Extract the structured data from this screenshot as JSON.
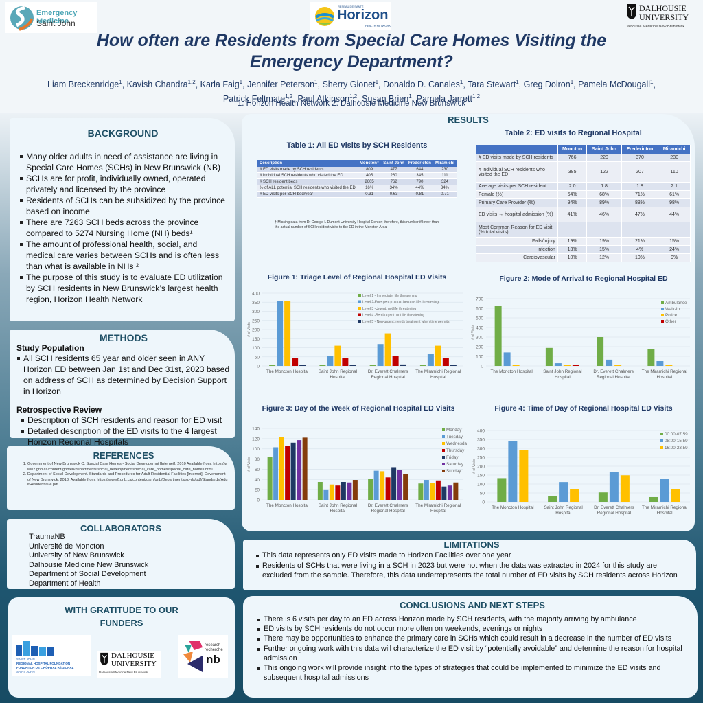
{
  "header": {
    "logo_left": {
      "line1": "Emergency Medicine",
      "line2": "Saint John"
    },
    "logo_center": {
      "small": "RÉSEAU DE SANTÉ",
      "name": "Horizon",
      "sub": "HEALTH NETWORK"
    },
    "logo_right": {
      "line1": "DALHOUSIE",
      "line2": "UNIVERSITY",
      "line3": "Dalhousie Medicine New Brunswick"
    },
    "title_line1": "How often are Residents from Special Care Homes Visiting the",
    "title_line2": "Emergency Department?",
    "authors_line1": [
      {
        "name": "Liam Breckenridge",
        "sup": "1"
      },
      {
        "name": "Kavish Chandra",
        "sup": "1,2"
      },
      {
        "name": "Karla Faig",
        "sup": "1"
      },
      {
        "name": "Jennifer Peterson",
        "sup": "1"
      },
      {
        "name": "Sherry Gionet",
        "sup": "1"
      },
      {
        "name": "Donaldo D. Canales",
        "sup": "1"
      },
      {
        "name": "Tara Stewart",
        "sup": "1"
      },
      {
        "name": "Greg Doiron",
        "sup": "1"
      },
      {
        "name": "Pamela McDougall",
        "sup": "1"
      }
    ],
    "authors_line2": [
      {
        "name": "Patrick Feltmate",
        "sup": "1,2"
      },
      {
        "name": "Paul Atkinson",
        "sup": "1,2"
      },
      {
        "name": "Susan Brien",
        "sup": "1"
      },
      {
        "name": "Pamela Jarrett",
        "sup": "1,2"
      }
    ],
    "affiliations": "1. Horizon Health Network  2. Dalhousie Medicine New Brunswick"
  },
  "background": {
    "heading": "BACKGROUND",
    "items": [
      "Many  older adults in need of assistance are living in Special Care Homes (SCHs) in New Brunswick (NB)",
      "SCHs are for profit, individually owned, operated privately and licensed by the province",
      "Residents of SCHs can be subsidized by the province based on income",
      "There are 7263 SCH beds across the province compared to 5274 Nursing Home (NH) beds¹",
      "The amount of professional health, social, and medical care varies between SCHs and is often less than what is available in NHs ²",
      "The purpose of this study is to evaluate ED utilization by SCH residents in New Brunswick’s largest health region, Horizon Health Network"
    ]
  },
  "methods": {
    "heading": "METHODS",
    "sub1": "Study Population",
    "sub1_items": [
      "All SCH residents 65 year and older seen in ANY Horizon ED between Jan 1st  and Dec 31st, 2023 based on address of SCH as determined by Decision Support in Horizon"
    ],
    "sub2": "Retrospective Review",
    "sub2_items": [
      "Description of SCH residents and reason for ED visit",
      "Detailed description of the ED visits to the 4 largest Horizon Regional Hospitals"
    ]
  },
  "references": {
    "heading": "REFERENCES",
    "items": [
      "Government of New Brunswick C. Special Care Homes - Social Developemnt [Internet]. 2010 Available from: https://www2.gnb.ca/content/gnb/en/departments/social_development/special_care_homes/special_care_homes.html",
      "Department of Social Development. Standards and Procedures for Adult Residential Facilities [Internet]. Government of New Brunswick; 2013. Available from: https://www2.gnb.ca/content/dam/gnb/Departments/sd-ds/pdf/Standards/AdultResidential-e.pdf"
    ]
  },
  "collaborators": {
    "heading": "COLLABORATORS",
    "items": [
      "TraumaNB",
      "Université de Moncton",
      "University of New Brunswick",
      "Dalhousie Medicine New Brunswick",
      "Department of Social Development",
      "Department of Health"
    ]
  },
  "funders": {
    "heading_line1": "WITH GRATITUDE TO OUR",
    "heading_line2": "FUNDERS",
    "logo1": {
      "l1": "SAINT JOHN",
      "l2": "REGIONAL HOSPITAL FOUNDATION",
      "l3": "FONDATION DE L'HÔPITAL RÉGIONAL",
      "l4": "SAINT JOHN"
    },
    "logo2": {
      "l1": "DALHOUSIE",
      "l2": "UNIVERSITY",
      "l3": "Dalhousie Medicine New Brunswick"
    },
    "logo3": {
      "l1": "research",
      "l2": "recherche",
      "l3": "nb"
    }
  },
  "results": {
    "heading": "RESULTS",
    "table1": {
      "title": "Table 1: All ED visits by SCH Residents",
      "headers": [
        "Description",
        "Moncton†",
        "Saint John",
        "Fredericton",
        "Miramichi"
      ],
      "rows": [
        [
          "# ED visits made by SCH residents",
          "809",
          "477",
          "644",
          "230"
        ],
        [
          "# individual SCH residents who visited the ED",
          "405",
          "260",
          "345",
          "111"
        ],
        [
          "# SCH resident beds",
          "2605",
          "762",
          "790",
          "324"
        ],
        [
          "% of ALL potential SCH residents who visited the ED",
          "16%",
          "34%",
          "44%",
          "34%"
        ],
        [
          "# ED visits per SCH bed/year",
          "0.31",
          "0.63",
          "0.81",
          "0.71"
        ]
      ],
      "footnote": "† Missing data from Dr George L Dumont University Hospital Center; therefore, this number if lower than the actual number of SCH resident visits to the ED in the Moncton Area"
    },
    "table2": {
      "title": "Table 2: ED visits to Regional Hospital",
      "headers": [
        "",
        "Moncton",
        "Saint John",
        "Fredericton",
        "Miramichi"
      ],
      "rows": [
        [
          "# ED visits made by SCH residents",
          "766",
          "220",
          "370",
          "230"
        ],
        [
          "# individual SCH residents who visited the ED",
          "385",
          "122",
          "207",
          "110"
        ],
        [
          "Average visits per SCH resident",
          "2.0",
          "1.8",
          "1.8",
          "2.1"
        ],
        [
          "Female (%)",
          "64%",
          "68%",
          "71%",
          "61%"
        ],
        [
          "Primary Care Provider (%)",
          "94%",
          "89%",
          "88%",
          "98%"
        ],
        [
          "ED visits → hospital admission (%)",
          "41%",
          "46%",
          "47%",
          "44%"
        ],
        [
          "Most Common Reason for ED visit (% total visits)",
          "",
          "",
          "",
          ""
        ],
        [
          "Falls/Injury",
          "19%",
          "19%",
          "21%",
          "15%"
        ],
        [
          "Infection",
          "13%",
          "15%",
          "4%",
          "24%"
        ],
        [
          "Cardiovascular",
          "10%",
          "12%",
          "10%",
          "9%"
        ]
      ]
    }
  },
  "limitations": {
    "heading": "LIMITATIONS",
    "items": [
      "This data represents only ED visits made to Horizon Facilities over one year",
      " Residents of SCHs that were living in a SCH in 2023 but were not when the data was extracted in 2024 for this study are excluded from the sample.  Therefore,  this data underrepresents the total number of ED visits by SCH residents across Horizon"
    ]
  },
  "conclusions": {
    "heading": "CONCLUSIONS AND NEXT STEPS",
    "items": [
      "There is 6 visits per day to an ED across Horizon made by SCH residents, with the majority arriving by ambulance",
      "ED visits by SCH residents do not occur more often on weekends, evenings or nights",
      "There may be opportunities to enhance the primary care in SCHs which could result in a decrease in the number of ED visits",
      "Further ongoing work with this data will characterize the ED visit by “potentially avoidable” and determine the reason for hospital admission",
      "This ongoing work will provide insight into the types of strategies that could be implemented to minimize the ED visits and subsequent hospital admissions"
    ]
  },
  "chart_data": [
    {
      "id": "fig1",
      "type": "bar",
      "title": "Figure 1: Triage Level of Regional Hospital ED Visits",
      "xlabel": "",
      "ylabel": "# of Visits",
      "ylim": [
        0,
        400
      ],
      "yticks": [
        0,
        50,
        100,
        150,
        200,
        250,
        300,
        350,
        400
      ],
      "grid": true,
      "legend": "top-right",
      "categories": [
        "The Moncton Hospital",
        "Saint John Regional Hospital",
        "Dr. Everett Chalmers Regional Hospital",
        "The Miramichi Regional Hospital"
      ],
      "series": [
        {
          "name": "Level 1 - Immediate: life threatening",
          "color": "#70ad47",
          "values": [
            2,
            4,
            2,
            2
          ]
        },
        {
          "name": "Level 2-Emergency: could become life threatening",
          "color": "#5b9bd5",
          "values": [
            355,
            55,
            120,
            67
          ]
        },
        {
          "name": "Level 3 -Urgent: not life threatening",
          "color": "#ffc000",
          "values": [
            357,
            111,
            179,
            111
          ]
        },
        {
          "name": "Level 4 -Semi-urgent: not life threatening",
          "color": "#c00000",
          "values": [
            44,
            42,
            56,
            44
          ]
        },
        {
          "name": "Level 5 - Non-urgent: needs treatment when time permits",
          "color": "#1f3864",
          "values": [
            4,
            2,
            8,
            3
          ]
        }
      ]
    },
    {
      "id": "fig2",
      "type": "bar",
      "title": "Figure 2: Mode of Arrival to Regional Hospital ED",
      "xlabel": "",
      "ylabel": "# of Visits",
      "ylim": [
        0,
        700
      ],
      "yticks": [
        0,
        100,
        200,
        300,
        400,
        500,
        600,
        700
      ],
      "grid": true,
      "legend": "top-right",
      "categories": [
        "The Moncton Hospital",
        "Saint John Regional Hospital",
        "Dr. Everett Chalmers Regional Hospital",
        "The Miramichi Regional Hospital"
      ],
      "series": [
        {
          "name": "Ambulance",
          "color": "#70ad47",
          "values": [
            622,
            187,
            300,
            175
          ]
        },
        {
          "name": "Walk-In",
          "color": "#5b9bd5",
          "values": [
            140,
            28,
            65,
            50
          ]
        },
        {
          "name": "Police",
          "color": "#ffc000",
          "values": [
            2,
            1,
            4,
            1
          ]
        },
        {
          "name": "Other",
          "color": "#c00000",
          "values": [
            0,
            1,
            0,
            0
          ]
        }
      ]
    },
    {
      "id": "fig3",
      "type": "bar",
      "title": "Figure 3: Day of the Week of Regional Hospital ED Visits",
      "xlabel": "",
      "ylabel": "# of Visits",
      "ylim": [
        0,
        140
      ],
      "yticks": [
        0,
        20,
        40,
        60,
        80,
        100,
        120,
        140
      ],
      "grid": true,
      "legend": "top-right",
      "categories": [
        "The Moncton Hospital",
        "Saint John Regional Hospital",
        "Dr. Everett Chalmers Regional Hospital",
        "The Miramichi Regional Hospital"
      ],
      "series": [
        {
          "name": "Monday",
          "color": "#70ad47",
          "values": [
            84,
            35,
            41,
            32
          ]
        },
        {
          "name": "Tuesday",
          "color": "#5b9bd5",
          "values": [
            103,
            19,
            57,
            39
          ]
        },
        {
          "name": "Wednesday",
          "color": "#ffc000",
          "values": [
            123,
            30,
            56,
            33
          ]
        },
        {
          "name": "Thursday",
          "color": "#c00000",
          "values": [
            105,
            28,
            44,
            38
          ]
        },
        {
          "name": "Friday",
          "color": "#1f3864",
          "values": [
            112,
            35,
            64,
            26
          ]
        },
        {
          "name": "Saturday",
          "color": "#7030a0",
          "values": [
            117,
            34,
            58,
            28
          ]
        },
        {
          "name": "Sunday",
          "color": "#843c0c",
          "values": [
            122,
            39,
            50,
            34
          ]
        }
      ]
    },
    {
      "id": "fig4",
      "type": "bar",
      "title": "Figure 4: Time of Day of Regional Hospital ED Visits",
      "xlabel": "",
      "ylabel": "# of Visits",
      "ylim": [
        0,
        400
      ],
      "yticks": [
        0,
        50,
        100,
        150,
        200,
        250,
        300,
        350,
        400
      ],
      "grid": true,
      "legend": "top-right",
      "categories": [
        "The Moncton Hospital",
        "Saint John Regional Hospital",
        "Dr. Everett Chalmers Regional Hospital",
        "The Miramichi Regional Hospital"
      ],
      "series": [
        {
          "name": "00:00-07:59",
          "color": "#70ad47",
          "values": [
            133,
            34,
            53,
            27
          ]
        },
        {
          "name": "08:00-15:59",
          "color": "#5b9bd5",
          "values": [
            341,
            111,
            167,
            128
          ]
        },
        {
          "name": "16:00-23:59",
          "color": "#ffc000",
          "values": [
            290,
            70,
            149,
            72
          ]
        }
      ]
    }
  ]
}
